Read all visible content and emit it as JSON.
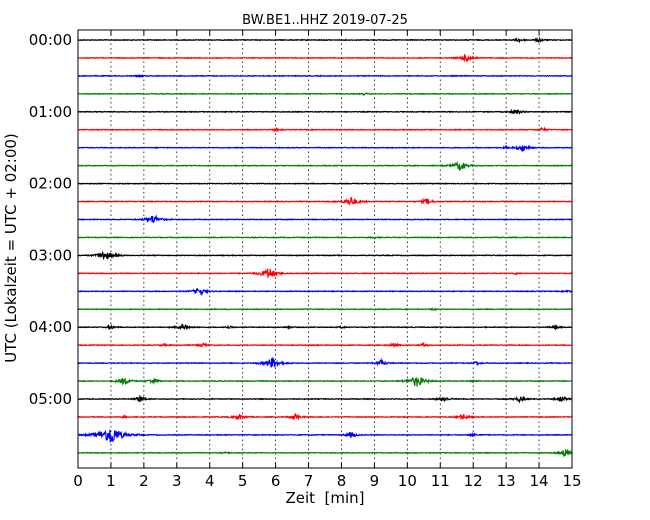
{
  "chart_data": {
    "type": "line",
    "title": "BW.BE1..HHZ 2019-07-25",
    "xlabel": "Zeit  [min]",
    "ylabel": "UTC (Lokalzeit = UTC + 02:00)",
    "xlim": [
      0,
      15
    ],
    "xticks": [
      "0",
      "1",
      "2",
      "3",
      "4",
      "5",
      "6",
      "7",
      "8",
      "9",
      "10",
      "11",
      "12",
      "13",
      "14",
      "15"
    ],
    "yticks": [
      "00:00",
      "01:00",
      "02:00",
      "03:00",
      "04:00",
      "05:00"
    ],
    "grid": "vertical dotted",
    "row_interval_minutes": 15,
    "row_colors": [
      "#000000",
      "#ff0000",
      "#0000ff",
      "#008000"
    ],
    "traces": [
      {
        "start": "00:00",
        "events": [
          [
            13.4,
            2
          ],
          [
            14.0,
            2
          ]
        ]
      },
      {
        "start": "00:15",
        "events": [
          [
            11.8,
            4
          ]
        ]
      },
      {
        "start": "00:30",
        "events": [
          [
            1.9,
            1
          ]
        ]
      },
      {
        "start": "00:45",
        "events": [
          [
            8.7,
            1
          ]
        ]
      },
      {
        "start": "01:00",
        "events": [
          [
            13.3,
            3
          ]
        ]
      },
      {
        "start": "01:15",
        "events": [
          [
            6.0,
            1
          ],
          [
            14.1,
            2
          ]
        ]
      },
      {
        "start": "01:30",
        "events": [
          [
            13.0,
            1
          ],
          [
            13.5,
            4
          ]
        ]
      },
      {
        "start": "01:45",
        "events": [
          [
            11.6,
            5
          ]
        ]
      },
      {
        "start": "02:00",
        "events": []
      },
      {
        "start": "02:15",
        "events": [
          [
            8.3,
            5
          ],
          [
            10.6,
            3
          ]
        ]
      },
      {
        "start": "02:30",
        "events": [
          [
            2.3,
            5
          ]
        ]
      },
      {
        "start": "02:45",
        "events": [
          [
            9.0,
            1
          ]
        ]
      },
      {
        "start": "03:00",
        "events": [
          [
            0.8,
            5
          ],
          [
            1.2,
            1
          ]
        ]
      },
      {
        "start": "03:15",
        "events": [
          [
            5.8,
            6
          ],
          [
            13.3,
            1
          ]
        ]
      },
      {
        "start": "03:30",
        "events": [
          [
            3.7,
            4
          ],
          [
            14.9,
            1
          ]
        ]
      },
      {
        "start": "03:45",
        "events": [
          [
            10.8,
            1
          ]
        ]
      },
      {
        "start": "04:00",
        "events": [
          [
            1.0,
            2
          ],
          [
            3.2,
            4
          ],
          [
            4.6,
            1
          ],
          [
            6.4,
            1
          ],
          [
            8.0,
            1
          ],
          [
            14.5,
            2
          ]
        ]
      },
      {
        "start": "04:15",
        "events": [
          [
            2.6,
            1
          ],
          [
            3.8,
            2
          ],
          [
            9.6,
            2
          ],
          [
            10.5,
            2
          ]
        ]
      },
      {
        "start": "04:30",
        "events": [
          [
            5.9,
            6
          ],
          [
            9.2,
            3
          ],
          [
            12.1,
            2
          ]
        ]
      },
      {
        "start": "04:45",
        "events": [
          [
            1.4,
            4
          ],
          [
            2.3,
            3
          ],
          [
            10.3,
            6
          ],
          [
            12.0,
            1
          ]
        ]
      },
      {
        "start": "05:00",
        "events": [
          [
            1.9,
            3
          ],
          [
            11.1,
            3
          ],
          [
            13.4,
            3
          ],
          [
            14.7,
            3
          ]
        ]
      },
      {
        "start": "05:15",
        "events": [
          [
            1.4,
            1
          ],
          [
            4.9,
            3
          ],
          [
            6.6,
            3
          ],
          [
            11.7,
            3
          ]
        ]
      },
      {
        "start": "05:30",
        "events": [
          [
            1.0,
            10
          ],
          [
            8.3,
            3
          ],
          [
            12.0,
            2
          ]
        ]
      },
      {
        "start": "05:45",
        "events": [
          [
            4.5,
            1
          ],
          [
            14.8,
            4
          ]
        ]
      }
    ]
  }
}
